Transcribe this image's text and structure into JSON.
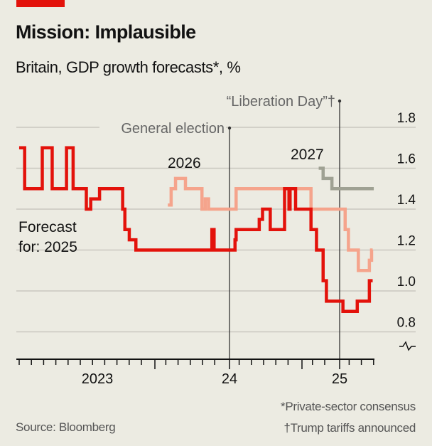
{
  "brand_color": "#e3120b",
  "title": "Mission: Implausible",
  "subtitle": "Britain, GDP growth forecasts*, %",
  "source": "Source: Bloomberg",
  "footnotes": [
    "*Private-sector consensus",
    "†Trump tariffs announced"
  ],
  "chart_data": {
    "type": "line",
    "step": true,
    "title": "Mission: Implausible",
    "ylabel": "%",
    "ylim": [
      0.8,
      1.8
    ],
    "yticks": [
      0.8,
      1.0,
      1.2,
      1.4,
      1.6,
      1.8
    ],
    "ytick_labels": [
      "0.8",
      "1.0",
      "1.2",
      "1.4",
      "1.6",
      "1.8"
    ],
    "xlim": [
      2022.07,
      2025.32
    ],
    "xtick_labels": [
      {
        "at": 2022.8,
        "label": "2023"
      },
      {
        "at": 2024.0,
        "label": "24"
      },
      {
        "at": 2025.0,
        "label": "25"
      }
    ],
    "grid": true,
    "axis_break": true,
    "annotations": [
      {
        "x": 2024.0,
        "label": "General election"
      },
      {
        "x": 2025.0,
        "label": "“Liberation Day”†"
      }
    ],
    "series": [
      {
        "name": "Forecast for: 2025",
        "label_lines": [
          "Forecast",
          "for: 2025"
        ],
        "color": "#e3120b",
        "points": [
          [
            2022.09,
            1.7
          ],
          [
            2022.14,
            1.5
          ],
          [
            2022.3,
            1.7
          ],
          [
            2022.39,
            1.5
          ],
          [
            2022.52,
            1.7
          ],
          [
            2022.58,
            1.5
          ],
          [
            2022.7,
            1.4
          ],
          [
            2022.74,
            1.45
          ],
          [
            2022.82,
            1.5
          ],
          [
            2023.03,
            1.4
          ],
          [
            2023.05,
            1.3
          ],
          [
            2023.09,
            1.25
          ],
          [
            2023.15,
            1.2
          ],
          [
            2023.84,
            1.3
          ],
          [
            2023.86,
            1.2
          ],
          [
            2024.05,
            1.25
          ],
          [
            2024.06,
            1.3
          ],
          [
            2024.27,
            1.35
          ],
          [
            2024.3,
            1.4
          ],
          [
            2024.37,
            1.3
          ],
          [
            2024.5,
            1.5
          ],
          [
            2024.54,
            1.4
          ],
          [
            2024.55,
            1.5
          ],
          [
            2024.6,
            1.4
          ],
          [
            2024.74,
            1.3
          ],
          [
            2024.79,
            1.2
          ],
          [
            2024.85,
            1.05
          ],
          [
            2024.88,
            0.95
          ],
          [
            2025.03,
            0.9
          ],
          [
            2025.16,
            0.95
          ],
          [
            2025.27,
            1.05
          ],
          [
            2025.3,
            1.05
          ]
        ]
      },
      {
        "name": "2026",
        "label_lines": [
          "2026"
        ],
        "color": "#f5a48c",
        "points": [
          [
            2023.44,
            1.42
          ],
          [
            2023.47,
            1.5
          ],
          [
            2023.51,
            1.55
          ],
          [
            2023.6,
            1.5
          ],
          [
            2023.75,
            1.4
          ],
          [
            2023.78,
            1.45
          ],
          [
            2023.81,
            1.4
          ],
          [
            2024.06,
            1.5
          ],
          [
            2024.74,
            1.4
          ],
          [
            2025.05,
            1.3
          ],
          [
            2025.08,
            1.2
          ],
          [
            2025.17,
            1.1
          ],
          [
            2025.27,
            1.15
          ],
          [
            2025.29,
            1.2
          ],
          [
            2025.3,
            1.2
          ]
        ]
      },
      {
        "name": "2027",
        "label_lines": [
          "2027"
        ],
        "color": "#9fa193",
        "points": [
          [
            2024.81,
            1.6
          ],
          [
            2024.85,
            1.55
          ],
          [
            2024.93,
            1.5
          ],
          [
            2025.31,
            1.5
          ]
        ]
      }
    ]
  }
}
